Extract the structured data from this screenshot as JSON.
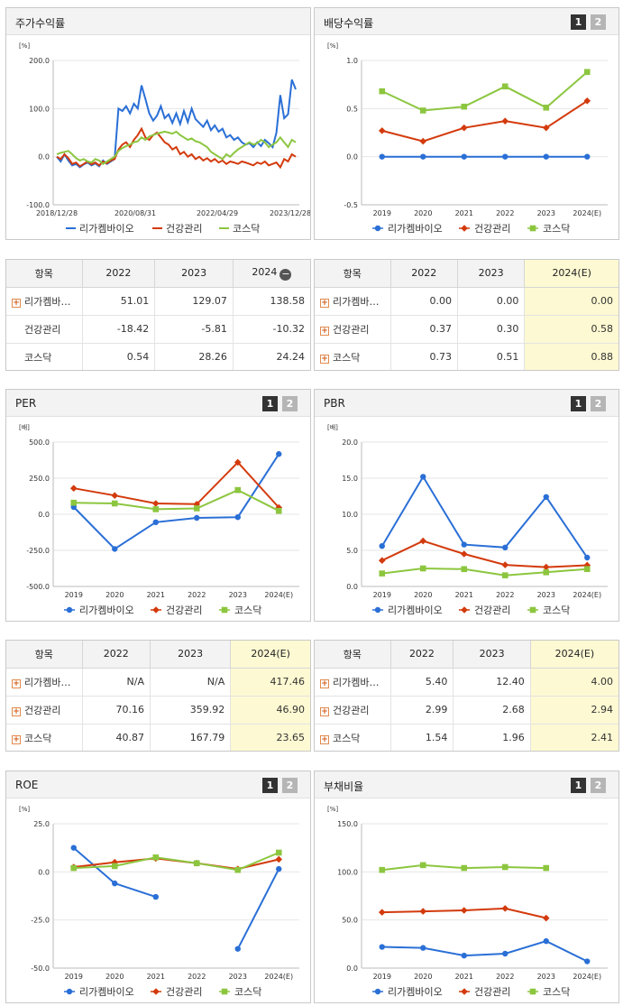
{
  "colors": {
    "blue": "#2a6fd6",
    "orange": "#d33a0c",
    "green": "#8cc63f"
  },
  "legend": [
    "리가켐바이오",
    "건강관리",
    "코스닥"
  ],
  "charts": [
    {
      "id": "price",
      "title": "주가수익률",
      "buttons": [],
      "unit": "[%]",
      "chart_data": {
        "type": "line",
        "x_ticks": [
          "2018/12/28",
          "2020/08/31",
          "2022/04/29",
          "2023/12/28"
        ],
        "y_ticks": [
          "200.0",
          "100.0",
          "0.0",
          "-100.0"
        ],
        "ylim": [
          -100,
          200
        ],
        "series": [
          {
            "name": "리가켐바이오",
            "color": "blue",
            "values": [
              0,
              -10,
              5,
              -8,
              -18,
              -15,
              -22,
              -16,
              -12,
              -18,
              -14,
              -20,
              -8,
              -15,
              -10,
              -5,
              100,
              95,
              105,
              90,
              110,
              100,
              148,
              120,
              90,
              75,
              85,
              105,
              80,
              88,
              70,
              90,
              68,
              95,
              72,
              100,
              78,
              70,
              62,
              75,
              55,
              65,
              52,
              58,
              40,
              45,
              35,
              40,
              30,
              25,
              28,
              20,
              30,
              22,
              35,
              28,
              20,
              50,
              128,
              80,
              88,
              160,
              140
            ]
          },
          {
            "name": "건강관리",
            "color": "orange",
            "values": [
              0,
              -5,
              5,
              -3,
              -15,
              -12,
              -20,
              -15,
              -10,
              -16,
              -12,
              -18,
              -10,
              -14,
              -8,
              -5,
              15,
              25,
              30,
              20,
              35,
              45,
              58,
              40,
              35,
              45,
              50,
              40,
              30,
              25,
              15,
              20,
              5,
              10,
              0,
              5,
              -5,
              0,
              -8,
              -3,
              -10,
              -5,
              -12,
              -8,
              -15,
              -10,
              -12,
              -15,
              -10,
              -12,
              -15,
              -18,
              -12,
              -15,
              -10,
              -18,
              -15,
              -12,
              -22,
              -5,
              -10,
              5,
              0
            ]
          },
          {
            "name": "코스닥",
            "color": "green",
            "values": [
              5,
              8,
              10,
              12,
              5,
              -3,
              -8,
              -5,
              -10,
              -12,
              -5,
              -8,
              -15,
              -10,
              -5,
              0,
              12,
              18,
              22,
              25,
              30,
              32,
              40,
              35,
              42,
              45,
              48,
              50,
              52,
              50,
              48,
              52,
              45,
              40,
              35,
              38,
              32,
              30,
              25,
              20,
              10,
              5,
              0,
              -5,
              5,
              0,
              8,
              15,
              20,
              25,
              30,
              25,
              28,
              35,
              30,
              20,
              25,
              30,
              40,
              30,
              20,
              35,
              30
            ]
          }
        ]
      }
    },
    {
      "id": "dividend",
      "title": "배당수익률",
      "buttons": [
        "1",
        "2"
      ],
      "unit": "[%]",
      "chart_data": {
        "type": "line",
        "categories": [
          "2019",
          "2020",
          "2021",
          "2022",
          "2023",
          "2024(E)"
        ],
        "y_ticks": [
          "1.0",
          "0.5",
          "0.0",
          "-0.5"
        ],
        "ylim": [
          -0.5,
          1.0
        ],
        "series": [
          {
            "name": "리가켐바이오",
            "color": "blue",
            "values": [
              0.0,
              0.0,
              0.0,
              0.0,
              0.0,
              0.0
            ]
          },
          {
            "name": "건강관리",
            "color": "orange",
            "values": [
              0.27,
              0.16,
              0.3,
              0.37,
              0.3,
              0.58
            ]
          },
          {
            "name": "코스닥",
            "color": "green",
            "values": [
              0.68,
              0.48,
              0.52,
              0.73,
              0.51,
              0.88
            ]
          }
        ]
      }
    },
    {
      "id": "per",
      "title": "PER",
      "buttons": [
        "1",
        "2"
      ],
      "unit": "[배]",
      "chart_data": {
        "type": "line",
        "categories": [
          "2019",
          "2020",
          "2021",
          "2022",
          "2023",
          "2024(E)"
        ],
        "y_ticks": [
          "500.0",
          "250.0",
          "0.0",
          "-250.0",
          "-500.0"
        ],
        "ylim": [
          -500,
          500
        ],
        "series": [
          {
            "name": "리가켐바이오",
            "color": "blue",
            "values": [
              50,
              -240,
              -55,
              -25,
              -20,
              417.46
            ]
          },
          {
            "name": "건강관리",
            "color": "orange",
            "values": [
              180,
              130,
              75,
              70.16,
              359.92,
              46.9
            ]
          },
          {
            "name": "코스닥",
            "color": "green",
            "values": [
              80,
              75,
              35,
              40.87,
              167.79,
              23.65
            ]
          }
        ]
      }
    },
    {
      "id": "pbr",
      "title": "PBR",
      "buttons": [
        "1",
        "2"
      ],
      "unit": "[배]",
      "chart_data": {
        "type": "line",
        "categories": [
          "2019",
          "2020",
          "2021",
          "2022",
          "2023",
          "2024(E)"
        ],
        "y_ticks": [
          "20.0",
          "15.0",
          "10.0",
          "5.0",
          "0.0"
        ],
        "ylim": [
          0,
          20
        ],
        "series": [
          {
            "name": "리가켐바이오",
            "color": "blue",
            "values": [
              5.6,
              15.2,
              5.8,
              5.4,
              12.4,
              4.0
            ]
          },
          {
            "name": "건강관리",
            "color": "orange",
            "values": [
              3.6,
              6.3,
              4.5,
              2.99,
              2.68,
              2.94
            ]
          },
          {
            "name": "코스닥",
            "color": "green",
            "values": [
              1.8,
              2.5,
              2.4,
              1.54,
              1.96,
              2.41
            ]
          }
        ]
      }
    },
    {
      "id": "roe",
      "title": "ROE",
      "buttons": [
        "1",
        "2"
      ],
      "unit": "[%]",
      "chart_data": {
        "type": "line",
        "categories": [
          "2019",
          "2020",
          "2021",
          "2022",
          "2023",
          "2024(E)"
        ],
        "y_ticks": [
          "25.0",
          "0.0",
          "-25.0",
          "-50.0"
        ],
        "ylim": [
          -50,
          25
        ],
        "series": [
          {
            "name": "리가켐바이오",
            "color": "blue",
            "values": [
              12.5,
              -6,
              -13,
              null,
              -40,
              1.5
            ]
          },
          {
            "name": "건강관리",
            "color": "orange",
            "values": [
              2.5,
              5,
              7,
              4.5,
              1.5,
              6.5
            ]
          },
          {
            "name": "코스닥",
            "color": "green",
            "values": [
              2.0,
              3.0,
              7.5,
              4.5,
              1.0,
              10.0
            ]
          }
        ]
      }
    },
    {
      "id": "debt",
      "title": "부채비율",
      "buttons": [
        "1",
        "2"
      ],
      "unit": "[%]",
      "chart_data": {
        "type": "line",
        "categories": [
          "2019",
          "2020",
          "2021",
          "2022",
          "2023",
          "2024(E)"
        ],
        "y_ticks": [
          "150.0",
          "100.0",
          "50.0",
          "0.0"
        ],
        "ylim": [
          0,
          150
        ],
        "series": [
          {
            "name": "리가켐바이오",
            "color": "blue",
            "values": [
              22,
              21,
              13,
              15,
              28,
              7
            ]
          },
          {
            "name": "건강관리",
            "color": "orange",
            "values": [
              58,
              59,
              60,
              62,
              52,
              null
            ]
          },
          {
            "name": "코스닥",
            "color": "green",
            "values": [
              102,
              107,
              104,
              105,
              104,
              null
            ]
          }
        ]
      }
    }
  ],
  "tables": [
    {
      "id": "price_table",
      "head": [
        "항목",
        "2022",
        "2023",
        "2024"
      ],
      "minus_on_last": true,
      "highlight_last": false,
      "rows": [
        {
          "name": "리가켐바…",
          "plus": true,
          "values": [
            "51.01",
            "129.07",
            "138.58"
          ]
        },
        {
          "name": "건강관리",
          "plus": false,
          "values": [
            "-18.42",
            "-5.81",
            "-10.32"
          ]
        },
        {
          "name": "코스닥",
          "plus": false,
          "values": [
            "0.54",
            "28.26",
            "24.24"
          ]
        }
      ]
    },
    {
      "id": "dividend_table",
      "head": [
        "항목",
        "2022",
        "2023",
        "2024(E)"
      ],
      "minus_on_last": false,
      "highlight_last": true,
      "rows": [
        {
          "name": "리가켐바…",
          "plus": true,
          "values": [
            "0.00",
            "0.00",
            "0.00"
          ]
        },
        {
          "name": "건강관리",
          "plus": true,
          "values": [
            "0.37",
            "0.30",
            "0.58"
          ]
        },
        {
          "name": "코스닥",
          "plus": true,
          "values": [
            "0.73",
            "0.51",
            "0.88"
          ]
        }
      ]
    },
    {
      "id": "per_table",
      "head": [
        "항목",
        "2022",
        "2023",
        "2024(E)"
      ],
      "minus_on_last": false,
      "highlight_last": true,
      "rows": [
        {
          "name": "리가켐바…",
          "plus": true,
          "values": [
            "N/A",
            "N/A",
            "417.46"
          ]
        },
        {
          "name": "건강관리",
          "plus": true,
          "values": [
            "70.16",
            "359.92",
            "46.90"
          ]
        },
        {
          "name": "코스닥",
          "plus": true,
          "values": [
            "40.87",
            "167.79",
            "23.65"
          ]
        }
      ]
    },
    {
      "id": "pbr_table",
      "head": [
        "항목",
        "2022",
        "2023",
        "2024(E)"
      ],
      "minus_on_last": false,
      "highlight_last": true,
      "rows": [
        {
          "name": "리가켐바…",
          "plus": true,
          "values": [
            "5.40",
            "12.40",
            "4.00"
          ]
        },
        {
          "name": "건강관리",
          "plus": true,
          "values": [
            "2.99",
            "2.68",
            "2.94"
          ]
        },
        {
          "name": "코스닥",
          "plus": true,
          "values": [
            "1.54",
            "1.96",
            "2.41"
          ]
        }
      ]
    }
  ]
}
